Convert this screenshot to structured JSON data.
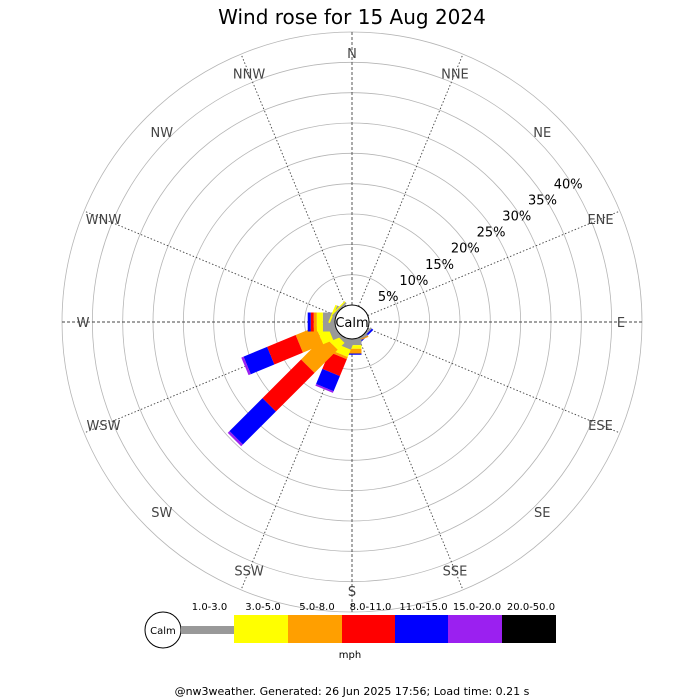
{
  "chart_data": {
    "type": "windrose",
    "title": "Wind rose for 15 Aug 2024",
    "directions": [
      "N",
      "NNE",
      "NE",
      "ENE",
      "E",
      "ESE",
      "SE",
      "SSE",
      "S",
      "SSW",
      "SW",
      "WSW",
      "W",
      "WNW",
      "NW",
      "NNW"
    ],
    "ring_labels": [
      "5%",
      "10%",
      "15%",
      "20%",
      "25%",
      "30%",
      "35%",
      "40%"
    ],
    "ring_values": [
      5,
      10,
      15,
      20,
      25,
      30,
      35,
      40
    ],
    "radial_max": 45,
    "calm_label": "Calm",
    "unit": "mph",
    "speed_bins": [
      "1.0-3.0",
      "3.0-5.0",
      "5.0-8.0",
      "8.0-11.0",
      "11.0-15.0",
      "15.0-20.0",
      "20.0-50.0"
    ],
    "bin_colors": [
      "#999999",
      "#ffff00",
      "#ff9f00",
      "#ff0000",
      "#0000ff",
      "#9b20f0",
      "#000000"
    ],
    "series": [
      {
        "direction": "SE",
        "values": [
          0.3,
          0.0,
          0.0,
          0.0,
          0.3,
          0.0,
          0.0
        ]
      },
      {
        "direction": "SSE",
        "values": [
          0.3,
          0.0,
          0.2,
          0.0,
          0.0,
          0.0,
          0.0
        ]
      },
      {
        "direction": "S",
        "values": [
          1.0,
          0.6,
          0.8,
          0.0,
          0.2,
          0.0,
          0.0
        ]
      },
      {
        "direction": "SSW",
        "values": [
          1.5,
          1.3,
          0.4,
          3.0,
          2.7,
          0.3,
          0.0
        ]
      },
      {
        "direction": "SW",
        "values": [
          0.5,
          1.6,
          5.4,
          9.0,
          7.7,
          0.4,
          0.0
        ]
      },
      {
        "direction": "WSW",
        "values": [
          1.2,
          1.8,
          3.6,
          5.1,
          4.2,
          0.4,
          0.0
        ]
      },
      {
        "direction": "W",
        "values": [
          2.0,
          1.0,
          0.5,
          0.5,
          0.5,
          0.0,
          0.0
        ]
      },
      {
        "direction": "WNW",
        "values": [
          0.5,
          0.3,
          0.0,
          0.0,
          0.0,
          0.0,
          0.0
        ]
      },
      {
        "direction": "NW",
        "values": [
          0.3,
          0.2,
          0.0,
          0.0,
          0.0,
          0.0,
          0.0
        ]
      }
    ],
    "footer": "@nw3weather. Generated: 26 Jun 2025 17:56; Load time: 0.21 s"
  }
}
